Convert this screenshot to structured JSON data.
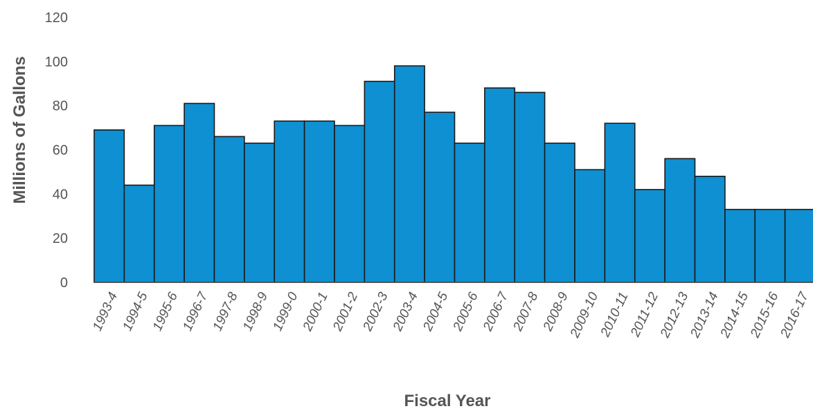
{
  "chart_data": {
    "type": "bar",
    "title": "",
    "xlabel": "Fiscal Year",
    "ylabel": "Millions of Gallons",
    "ylim": [
      0,
      120
    ],
    "yticks": [
      0,
      20,
      40,
      60,
      80,
      100,
      120
    ],
    "grid": false,
    "legend": "none",
    "categories": [
      "1993-4",
      "1994-5",
      "1995-6",
      "1996-7",
      "1997-8",
      "1998-9",
      "1999-0",
      "2000-1",
      "2001-2",
      "2002-3",
      "2003-4",
      "2004-5",
      "2005-6",
      "2006-7",
      "2007-8",
      "2008-9",
      "2009-10",
      "2010-11",
      "2011-12",
      "2012-13",
      "2013-14",
      "2014-15",
      "2015-16",
      "2016-17"
    ],
    "values": [
      69,
      44,
      71,
      81,
      66,
      63,
      73,
      73,
      71,
      91,
      98,
      77,
      63,
      88,
      86,
      63,
      51,
      72,
      42,
      56,
      48,
      33,
      33,
      33
    ],
    "colors": {
      "bar_fill": "#0e90d2",
      "bar_stroke": "#1a1a1a",
      "axis": "#555555"
    }
  }
}
